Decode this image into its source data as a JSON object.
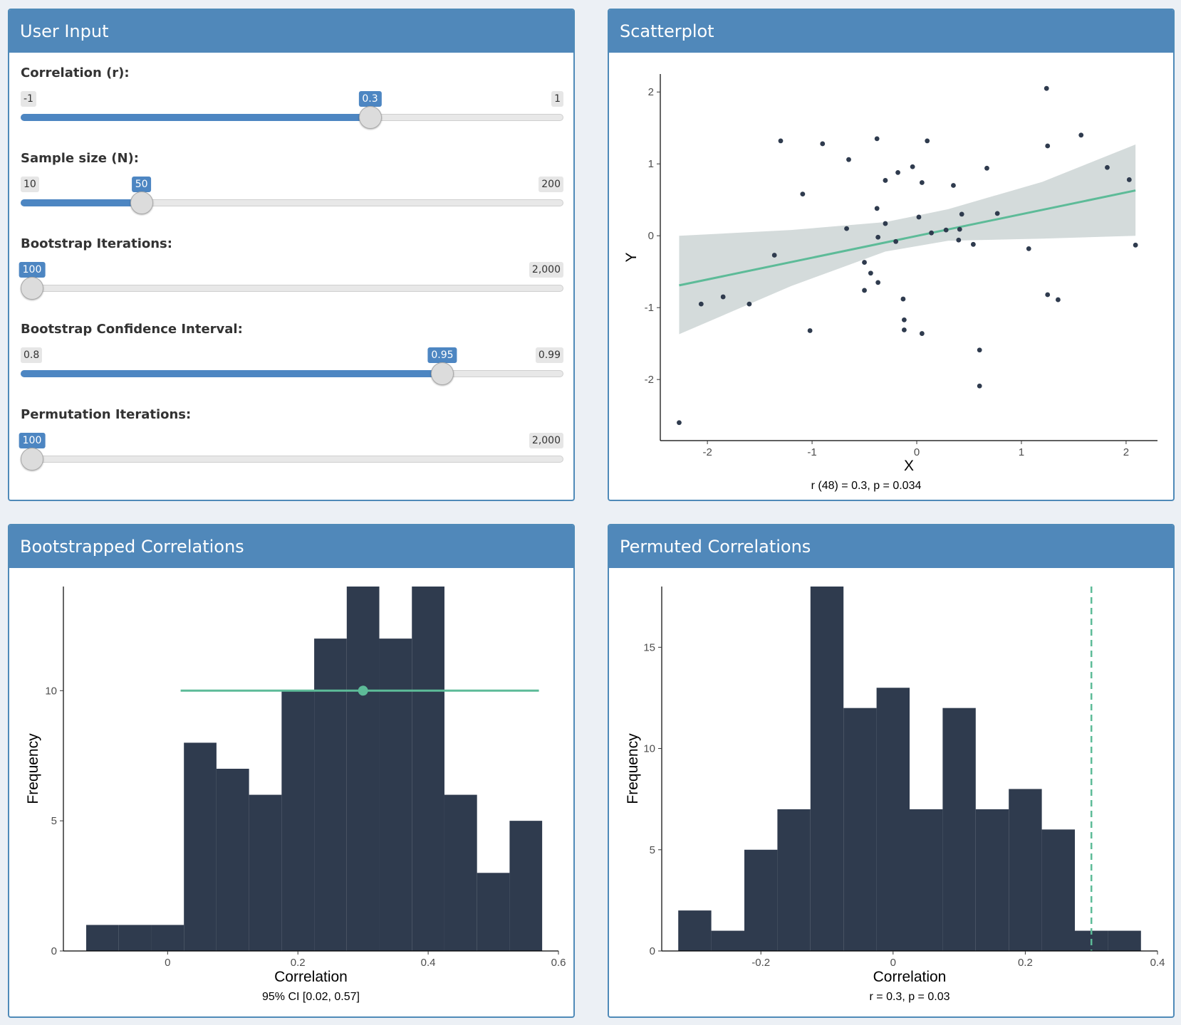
{
  "colors": {
    "header": "#5088ba",
    "accent": "#4d86c2",
    "bars": "#2f3b4e",
    "teal": "#5dbb98",
    "ribbon": "#d4dbdb",
    "points": "#2f3b4e"
  },
  "user_input": {
    "title": "User Input",
    "sliders": [
      {
        "label": "Correlation (r):",
        "min": "-1",
        "max": "1",
        "value": "0.3",
        "fraction": 0.65
      },
      {
        "label": "Sample size (N):",
        "min": "10",
        "max": "200",
        "value": "50",
        "fraction": 0.2105
      },
      {
        "label": "Bootstrap Iterations:",
        "min": "",
        "max": "2,000",
        "value": "100",
        "fraction": 0
      },
      {
        "label": "Bootstrap Confidence Interval:",
        "min": "0.8",
        "max": "0.99",
        "value": "0.95",
        "fraction": 0.789
      },
      {
        "label": "Permutation Iterations:",
        "min": "",
        "max": "2,000",
        "value": "100",
        "fraction": 0
      }
    ]
  },
  "scatter_box": {
    "title": "Scatterplot",
    "caption": "r (48) = 0.3, p = 0.034"
  },
  "boot_box": {
    "title": "Bootstrapped Correlations",
    "caption": "95% CI [0.02, 0.57]"
  },
  "perm_box": {
    "title": "Permuted Correlations",
    "caption": "r = 0.3, p = 0.03"
  },
  "chart_data": [
    {
      "type": "scatter",
      "xlabel": "X",
      "ylabel": "Y",
      "xlim": [
        -2.45,
        2.3
      ],
      "ylim": [
        -2.85,
        2.25
      ],
      "xticks": [
        -2,
        -1,
        0,
        1,
        2
      ],
      "yticks": [
        -2,
        -1,
        0,
        1,
        2
      ],
      "points": [
        [
          -2.27,
          -2.6
        ],
        [
          -2.06,
          -0.95
        ],
        [
          -1.85,
          -0.85
        ],
        [
          -1.6,
          -0.95
        ],
        [
          -1.36,
          -0.27
        ],
        [
          -1.3,
          1.32
        ],
        [
          -1.09,
          0.58
        ],
        [
          -1.02,
          -1.32
        ],
        [
          -0.9,
          1.28
        ],
        [
          -0.67,
          0.1
        ],
        [
          -0.65,
          1.06
        ],
        [
          -0.5,
          -0.37
        ],
        [
          -0.5,
          -0.76
        ],
        [
          -0.44,
          -0.52
        ],
        [
          -0.38,
          1.35
        ],
        [
          -0.38,
          0.38
        ],
        [
          -0.37,
          -0.02
        ],
        [
          -0.37,
          -0.65
        ],
        [
          -0.3,
          0.17
        ],
        [
          -0.3,
          0.77
        ],
        [
          -0.2,
          -0.08
        ],
        [
          -0.18,
          0.88
        ],
        [
          -0.13,
          -0.88
        ],
        [
          -0.12,
          -1.17
        ],
        [
          -0.12,
          -1.31
        ],
        [
          -0.04,
          0.96
        ],
        [
          0.02,
          0.26
        ],
        [
          0.05,
          0.74
        ],
        [
          0.05,
          -1.36
        ],
        [
          0.1,
          1.32
        ],
        [
          0.14,
          0.04
        ],
        [
          0.28,
          0.08
        ],
        [
          0.35,
          0.7
        ],
        [
          0.4,
          -0.06
        ],
        [
          0.41,
          0.09
        ],
        [
          0.43,
          0.3
        ],
        [
          0.54,
          -0.12
        ],
        [
          0.6,
          -1.59
        ],
        [
          0.6,
          -2.09
        ],
        [
          0.67,
          0.94
        ],
        [
          0.77,
          0.31
        ],
        [
          1.07,
          -0.18
        ],
        [
          1.24,
          2.05
        ],
        [
          1.25,
          1.25
        ],
        [
          1.25,
          -0.82
        ],
        [
          1.35,
          -0.89
        ],
        [
          1.57,
          1.4
        ],
        [
          1.82,
          0.95
        ],
        [
          2.03,
          0.78
        ],
        [
          2.09,
          -0.13
        ]
      ],
      "fit": {
        "x": [
          -2.27,
          2.09
        ],
        "y": [
          -0.69,
          0.63
        ]
      },
      "ci_band": {
        "x": [
          -2.27,
          -1.2,
          -0.3,
          0.3,
          1.2,
          2.09
        ],
        "lower": [
          -1.37,
          -0.7,
          -0.22,
          -0.07,
          -0.04,
          0.0
        ],
        "upper": [
          0.0,
          0.08,
          0.19,
          0.37,
          0.75,
          1.27
        ]
      }
    },
    {
      "type": "bar",
      "xlabel": "Correlation",
      "ylabel": "Frequency",
      "xlim": [
        -0.16,
        0.6
      ],
      "ylim": [
        0,
        14
      ],
      "xticks": [
        0.0,
        0.2,
        0.4,
        0.6
      ],
      "yticks": [
        0,
        5,
        10
      ],
      "bin_edges": [
        -0.125,
        -0.075,
        -0.025,
        0.025,
        0.075,
        0.125,
        0.175,
        0.225,
        0.275,
        0.325,
        0.375,
        0.425,
        0.475,
        0.525,
        0.575
      ],
      "values": [
        1,
        1,
        1,
        8,
        7,
        6,
        10,
        12,
        14,
        12,
        14,
        6,
        3,
        5
      ],
      "interval": {
        "low": 0.02,
        "high": 0.57,
        "point": 0.3,
        "y": 10
      }
    },
    {
      "type": "bar",
      "xlabel": "Correlation",
      "ylabel": "Frequency",
      "xlim": [
        -0.35,
        0.4
      ],
      "ylim": [
        0,
        18
      ],
      "xticks": [
        -0.2,
        0.0,
        0.2,
        0.4
      ],
      "yticks": [
        0,
        5,
        10,
        15
      ],
      "bin_edges": [
        -0.325,
        -0.275,
        -0.225,
        -0.175,
        -0.125,
        -0.075,
        -0.025,
        0.025,
        0.075,
        0.125,
        0.175,
        0.225,
        0.275,
        0.325,
        0.375
      ],
      "values": [
        2,
        1,
        5,
        7,
        18,
        12,
        13,
        7,
        12,
        7,
        8,
        6,
        1,
        1
      ],
      "vline": 0.3
    }
  ]
}
